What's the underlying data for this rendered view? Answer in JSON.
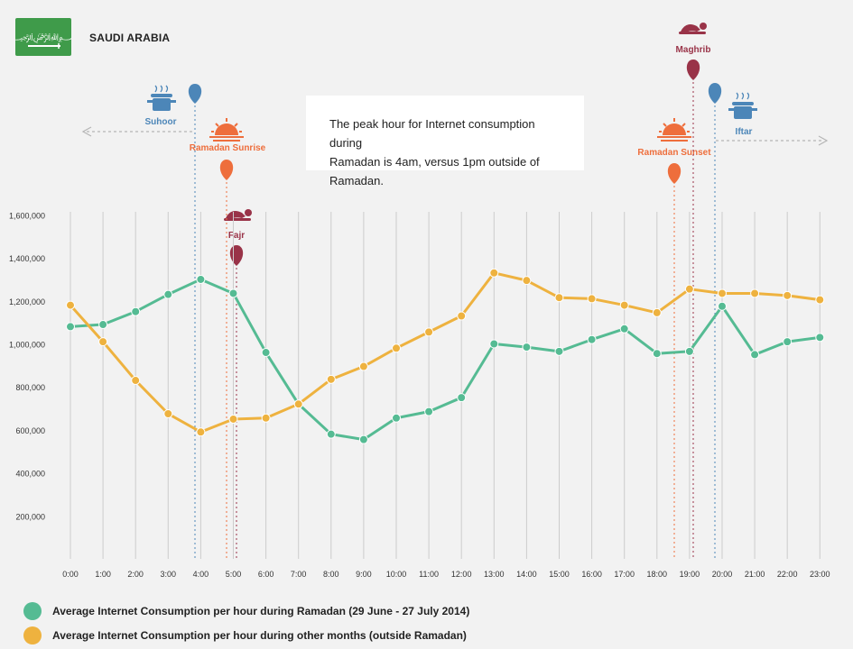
{
  "header": {
    "country": "SAUDI ARABIA"
  },
  "note": {
    "line1": "The peak hour for Internet consumption during",
    "line2": "Ramadan is 4am, versus 1pm outside of Ramadan."
  },
  "colors": {
    "ramadan": "#55bb93",
    "other": "#eeb23f",
    "blue": "#4c86b8",
    "orange": "#ee6e3c",
    "prayer": "#993348",
    "grid": "#cccccc"
  },
  "events": {
    "suhoor": "Suhoor",
    "ramadan_sunrise": "Ramadan Sunrise",
    "fajr": "Fajr",
    "maghrib": "Maghrib",
    "ramadan_sunset": "Ramadan Sunset",
    "iftar": "Iftar"
  },
  "legend": {
    "ramadan": "Average Internet Consumption per hour during Ramadan (29 June - 27 July 2014)",
    "other": "Average Internet Consumption per hour during other months (outside Ramadan)"
  },
  "chart_data": {
    "type": "line",
    "categories": [
      "0:00",
      "1:00",
      "2:00",
      "3:00",
      "4:00",
      "5:00",
      "6:00",
      "7:00",
      "8:00",
      "9:00",
      "10:00",
      "11:00",
      "12:00",
      "13:00",
      "14:00",
      "15:00",
      "16:00",
      "17:00",
      "18:00",
      "19:00",
      "20:00",
      "21:00",
      "22:00",
      "23:00"
    ],
    "series": [
      {
        "name": "Average Internet Consumption per hour during Ramadan (29 June - 27 July 2014)",
        "color": "#55bb93",
        "values": [
          1080000,
          1090000,
          1150000,
          1230000,
          1300000,
          1235000,
          960000,
          720000,
          580000,
          555000,
          655000,
          685000,
          750000,
          1000000,
          985000,
          965000,
          1020000,
          1070000,
          955000,
          965000,
          1175000,
          950000,
          1010000,
          1030000
        ]
      },
      {
        "name": "Average Internet Consumption per hour during other months (outside Ramadan)",
        "color": "#eeb23f",
        "values": [
          1180000,
          1010000,
          830000,
          675000,
          590000,
          650000,
          655000,
          720000,
          835000,
          895000,
          980000,
          1055000,
          1130000,
          1330000,
          1295000,
          1215000,
          1210000,
          1180000,
          1145000,
          1255000,
          1235000,
          1235000,
          1225000,
          1205000
        ]
      }
    ],
    "ylim": [
      0,
      1600000
    ],
    "yticks": [
      "200,000",
      "400,000",
      "600,000",
      "800,000",
      "1,000,000",
      "1,200,000",
      "1,400,000",
      "1,600,000"
    ],
    "ytick_values": [
      200000,
      400000,
      600000,
      800000,
      1000000,
      1200000,
      1400000,
      1600000
    ],
    "grid": "vertical",
    "legend_position": "bottom-left"
  }
}
